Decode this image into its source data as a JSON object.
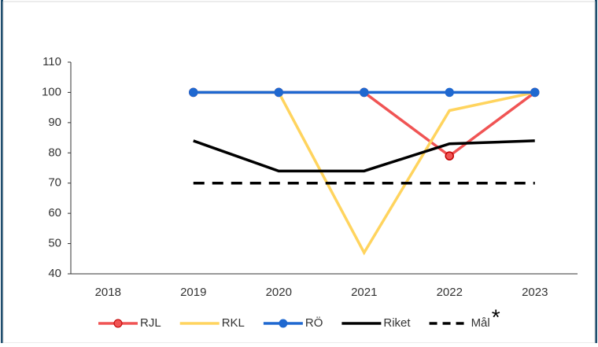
{
  "chart_data": {
    "type": "line",
    "categories": [
      "2018",
      "2019",
      "2020",
      "2021",
      "2022",
      "2023"
    ],
    "series": [
      {
        "name": "RJL",
        "color": "#f05454",
        "marker": true,
        "values": [
          null,
          100,
          100,
          100,
          79,
          100
        ]
      },
      {
        "name": "RKL",
        "color": "#ffd45e",
        "marker": false,
        "values": [
          null,
          100,
          100,
          47,
          94,
          100
        ]
      },
      {
        "name": "RÖ",
        "color": "#1f68d0",
        "marker": true,
        "values": [
          null,
          100,
          100,
          100,
          100,
          100
        ]
      },
      {
        "name": "Riket",
        "color": "#000000",
        "marker": false,
        "values": [
          null,
          84,
          74,
          74,
          83,
          84
        ]
      },
      {
        "name": "Mål",
        "color": "#000000",
        "marker": false,
        "dashed": true,
        "values": [
          null,
          70,
          70,
          70,
          70,
          70
        ]
      }
    ],
    "legend_note": "*",
    "ylim": [
      40,
      110
    ],
    "yticks": [
      40,
      50,
      60,
      70,
      80,
      90,
      100,
      110
    ],
    "grid": false,
    "legend": "bottom"
  }
}
